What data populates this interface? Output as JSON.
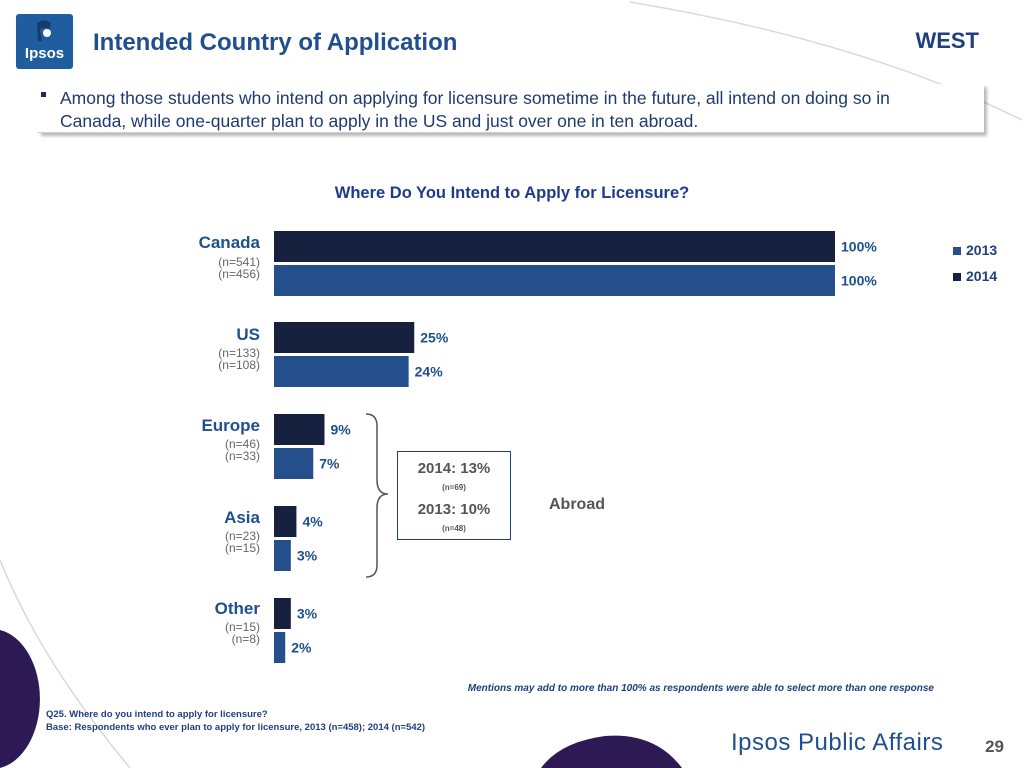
{
  "header": {
    "logo_text": "Ipsos",
    "title": "Intended Country of Application",
    "region": "WEST"
  },
  "callout": {
    "text": "Among those students who intend on applying for licensure sometime in the future, all intend on doing so in Canada, while one-quarter plan to apply in the US and just over one in ten abroad."
  },
  "colors": {
    "series_2013": "#254f8a",
    "series_2014": "#16213f",
    "accent_purple": "#2d1a55"
  },
  "chart_data": {
    "type": "bar",
    "orientation": "horizontal",
    "title": "Where Do You Intend to Apply for Licensure?",
    "categories": [
      "Canada",
      "US",
      "Europe",
      "Asia",
      "Other"
    ],
    "category_sample_sizes": [
      [
        "(n=541)",
        "(n=456)"
      ],
      [
        "(n=133)",
        "(n=108)"
      ],
      [
        "(n=46)",
        "(n=33)"
      ],
      [
        "(n=23)",
        "(n=15)"
      ],
      [
        "(n=15)",
        "(n=8)"
      ]
    ],
    "series": [
      {
        "name": "2014",
        "values": [
          100,
          25,
          9,
          4,
          3
        ]
      },
      {
        "name": "2013",
        "values": [
          100,
          24,
          7,
          3,
          2
        ]
      }
    ],
    "value_labels": {
      "2014": [
        "100%",
        "25%",
        "9%",
        "4%",
        "3%"
      ],
      "2013": [
        "100%",
        "24%",
        "7%",
        "3%",
        "2%"
      ]
    },
    "xlim": [
      0,
      100
    ],
    "legend": {
      "placement": "right",
      "entries": [
        "2013",
        "2014"
      ]
    },
    "grid": false,
    "annotation": {
      "label": "Abroad",
      "line_2014": "2014: 13%",
      "n_2014": "(n=69)",
      "line_2013": "2013: 10%",
      "n_2013": "(n=48)"
    }
  },
  "notes": {
    "mentions": "Mentions may add to more than 100% as respondents were able to select more than one response",
    "question": "Q25. Where do you intend to apply for licensure?",
    "base": "Base: Respondents who ever plan to apply for licensure, 2013 (n=458); 2014 (n=542)"
  },
  "footer": {
    "brand": "Ipsos Public Affairs",
    "page_number": "29"
  }
}
